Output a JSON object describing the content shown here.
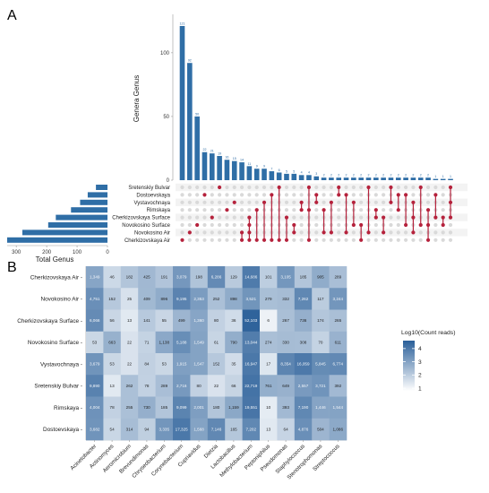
{
  "panels": {
    "a_label": "A",
    "b_label": "B"
  },
  "colors": {
    "bar": "#2f6ea6",
    "dot_active": "#b5223c",
    "dot_inactive": "#d9d9d9",
    "heat_low": "#ffffff",
    "heat_high": "#2a5f99"
  },
  "chart_data": [
    {
      "type": "bar",
      "role": "upset-intersection-sizes",
      "ylabel": "Genera Genus",
      "ylim": [
        0,
        121
      ],
      "yticks": [
        0,
        50,
        100
      ],
      "values": [
        121,
        92,
        50,
        22,
        21,
        19,
        16,
        15,
        14,
        11,
        9,
        9,
        7,
        6,
        5,
        5,
        4,
        4,
        3,
        2,
        2,
        2,
        2,
        2,
        2,
        2,
        2,
        2,
        2,
        2,
        2,
        2,
        2,
        2,
        1,
        1,
        1
      ],
      "value_labels": [
        "121",
        "92",
        "50",
        "22",
        "21",
        "19",
        "16",
        "15",
        "14",
        "11",
        "9",
        "9",
        "7",
        "6",
        "5",
        "5",
        "4",
        "4",
        "3",
        "2",
        "2",
        "2",
        "2",
        "2",
        "2",
        "2",
        "2",
        "2",
        "2",
        "2",
        "2",
        "2",
        "2",
        "2",
        "1",
        "1",
        "1"
      ]
    },
    {
      "type": "bar",
      "role": "set-sizes",
      "orientation": "horizontal",
      "xlabel": "Total Genus",
      "xticks": [
        300,
        200,
        100,
        0
      ],
      "sets": [
        "Sretenskiy Bulvar",
        "Dostoevskaya",
        "Vystavochnaya",
        "Rimskaya",
        "Cherkizovskaya Surface",
        "Novokosino Surface",
        "Novokosino Air",
        "Cherkizovskaya Air"
      ],
      "values": [
        38,
        65,
        90,
        120,
        170,
        195,
        280,
        330
      ]
    },
    {
      "type": "upset-matrix",
      "sets": [
        "Sretenskiy Bulvar",
        "Dostoevskaya",
        "Vystavochnaya",
        "Rimskaya",
        "Cherkizovskaya Surface",
        "Novokosino Surface",
        "Novokosino Air",
        "Cherkizovskaya Air"
      ],
      "membership": [
        [
          7
        ],
        [
          6
        ],
        [
          5
        ],
        [
          1
        ],
        [
          4
        ],
        [
          0
        ],
        [
          3
        ],
        [
          2
        ],
        [
          6,
          7
        ],
        [
          4,
          5,
          6,
          7
        ],
        [
          3,
          7
        ],
        [
          2,
          7
        ],
        [
          1,
          7
        ],
        [
          0,
          7
        ],
        [
          4,
          7
        ],
        [
          5,
          6
        ],
        [
          2,
          3
        ],
        [
          0,
          3,
          7
        ],
        [
          1,
          2
        ],
        [
          3,
          6
        ],
        [
          2,
          6
        ],
        [
          0,
          1
        ],
        [
          1,
          6
        ],
        [
          2,
          5
        ],
        [
          5,
          7
        ],
        [
          0,
          6
        ],
        [
          3,
          4
        ],
        [
          4,
          6
        ],
        [
          0,
          2
        ],
        [
          1,
          3
        ],
        [
          1,
          5
        ],
        [
          2,
          4,
          6
        ],
        [
          0,
          5
        ],
        [
          3,
          5,
          7
        ],
        [
          1,
          4
        ],
        [
          4,
          5
        ],
        [
          0,
          2,
          4
        ]
      ]
    },
    {
      "type": "heatmap",
      "rows": [
        "Cherkizovskaya Air",
        "Novokosino Air",
        "Cherkizovskaya Surface",
        "Novokosino Surface",
        "Vystavochnaya",
        "Sretenskiy Bulvar",
        "Rimskaya",
        "Dostoevskaya"
      ],
      "columns": [
        "Acinetobacter",
        "Actinomyces",
        "Aeromicrobium",
        "Brevundimonas",
        "Chryseobacterium",
        "Corynebacterium",
        "Cupriavidus",
        "Dietzia",
        "Lactobacillus",
        "Methylobacterium",
        "Peptoniphilus",
        "Pseudomonas",
        "Staphylococcus",
        "Stenotrophomonas",
        "Streptococcus"
      ],
      "values": [
        [
          "1,349",
          "46",
          "182",
          "425",
          "191",
          "3,079",
          "198",
          "6,286",
          "129",
          "14,686",
          "101",
          "3,105",
          "185",
          "905",
          "289"
        ],
        [
          "4,751",
          "152",
          "25",
          "409",
          "896",
          "9,195",
          "2,353",
          "252",
          "898",
          "3,521",
          "279",
          "332",
          "7,262",
          "117",
          "3,244"
        ],
        [
          "6,066",
          "56",
          "13",
          "141",
          "55",
          "499",
          "1,360",
          "80",
          "36",
          "52,103",
          "6",
          "267",
          "736",
          "174",
          "265"
        ],
        [
          "53",
          "663",
          "22",
          "71",
          "1,138",
          "5,188",
          "1,549",
          "61",
          "790",
          "13,044",
          "274",
          "330",
          "308",
          "70",
          "611"
        ],
        [
          "3,679",
          "53",
          "22",
          "84",
          "53",
          "1,915",
          "1,547",
          "152",
          "35",
          "16,947",
          "17",
          "8,354",
          "16,059",
          "5,845",
          "6,774"
        ],
        [
          "9,890",
          "13",
          "262",
          "78",
          "289",
          "2,716",
          "80",
          "22",
          "66",
          "22,719",
          "761",
          "649",
          "2,557",
          "3,721",
          "392"
        ],
        [
          "4,004",
          "78",
          "255",
          "730",
          "185",
          "9,099",
          "2,001",
          "180",
          "1,159",
          "19,551",
          "10",
          "393",
          "7,190",
          "1,446",
          "1,544"
        ],
        [
          "3,682",
          "54",
          "314",
          "94",
          "3,335",
          "17,325",
          "1,568",
          "7,146",
          "165",
          "7,202",
          "13",
          "64",
          "4,876",
          "504",
          "1,086"
        ]
      ],
      "legend_title": "Log10(Count reads)",
      "legend_ticks": [
        "4",
        "3",
        "2",
        "1"
      ],
      "color_range": [
        0,
        4.8
      ]
    }
  ]
}
